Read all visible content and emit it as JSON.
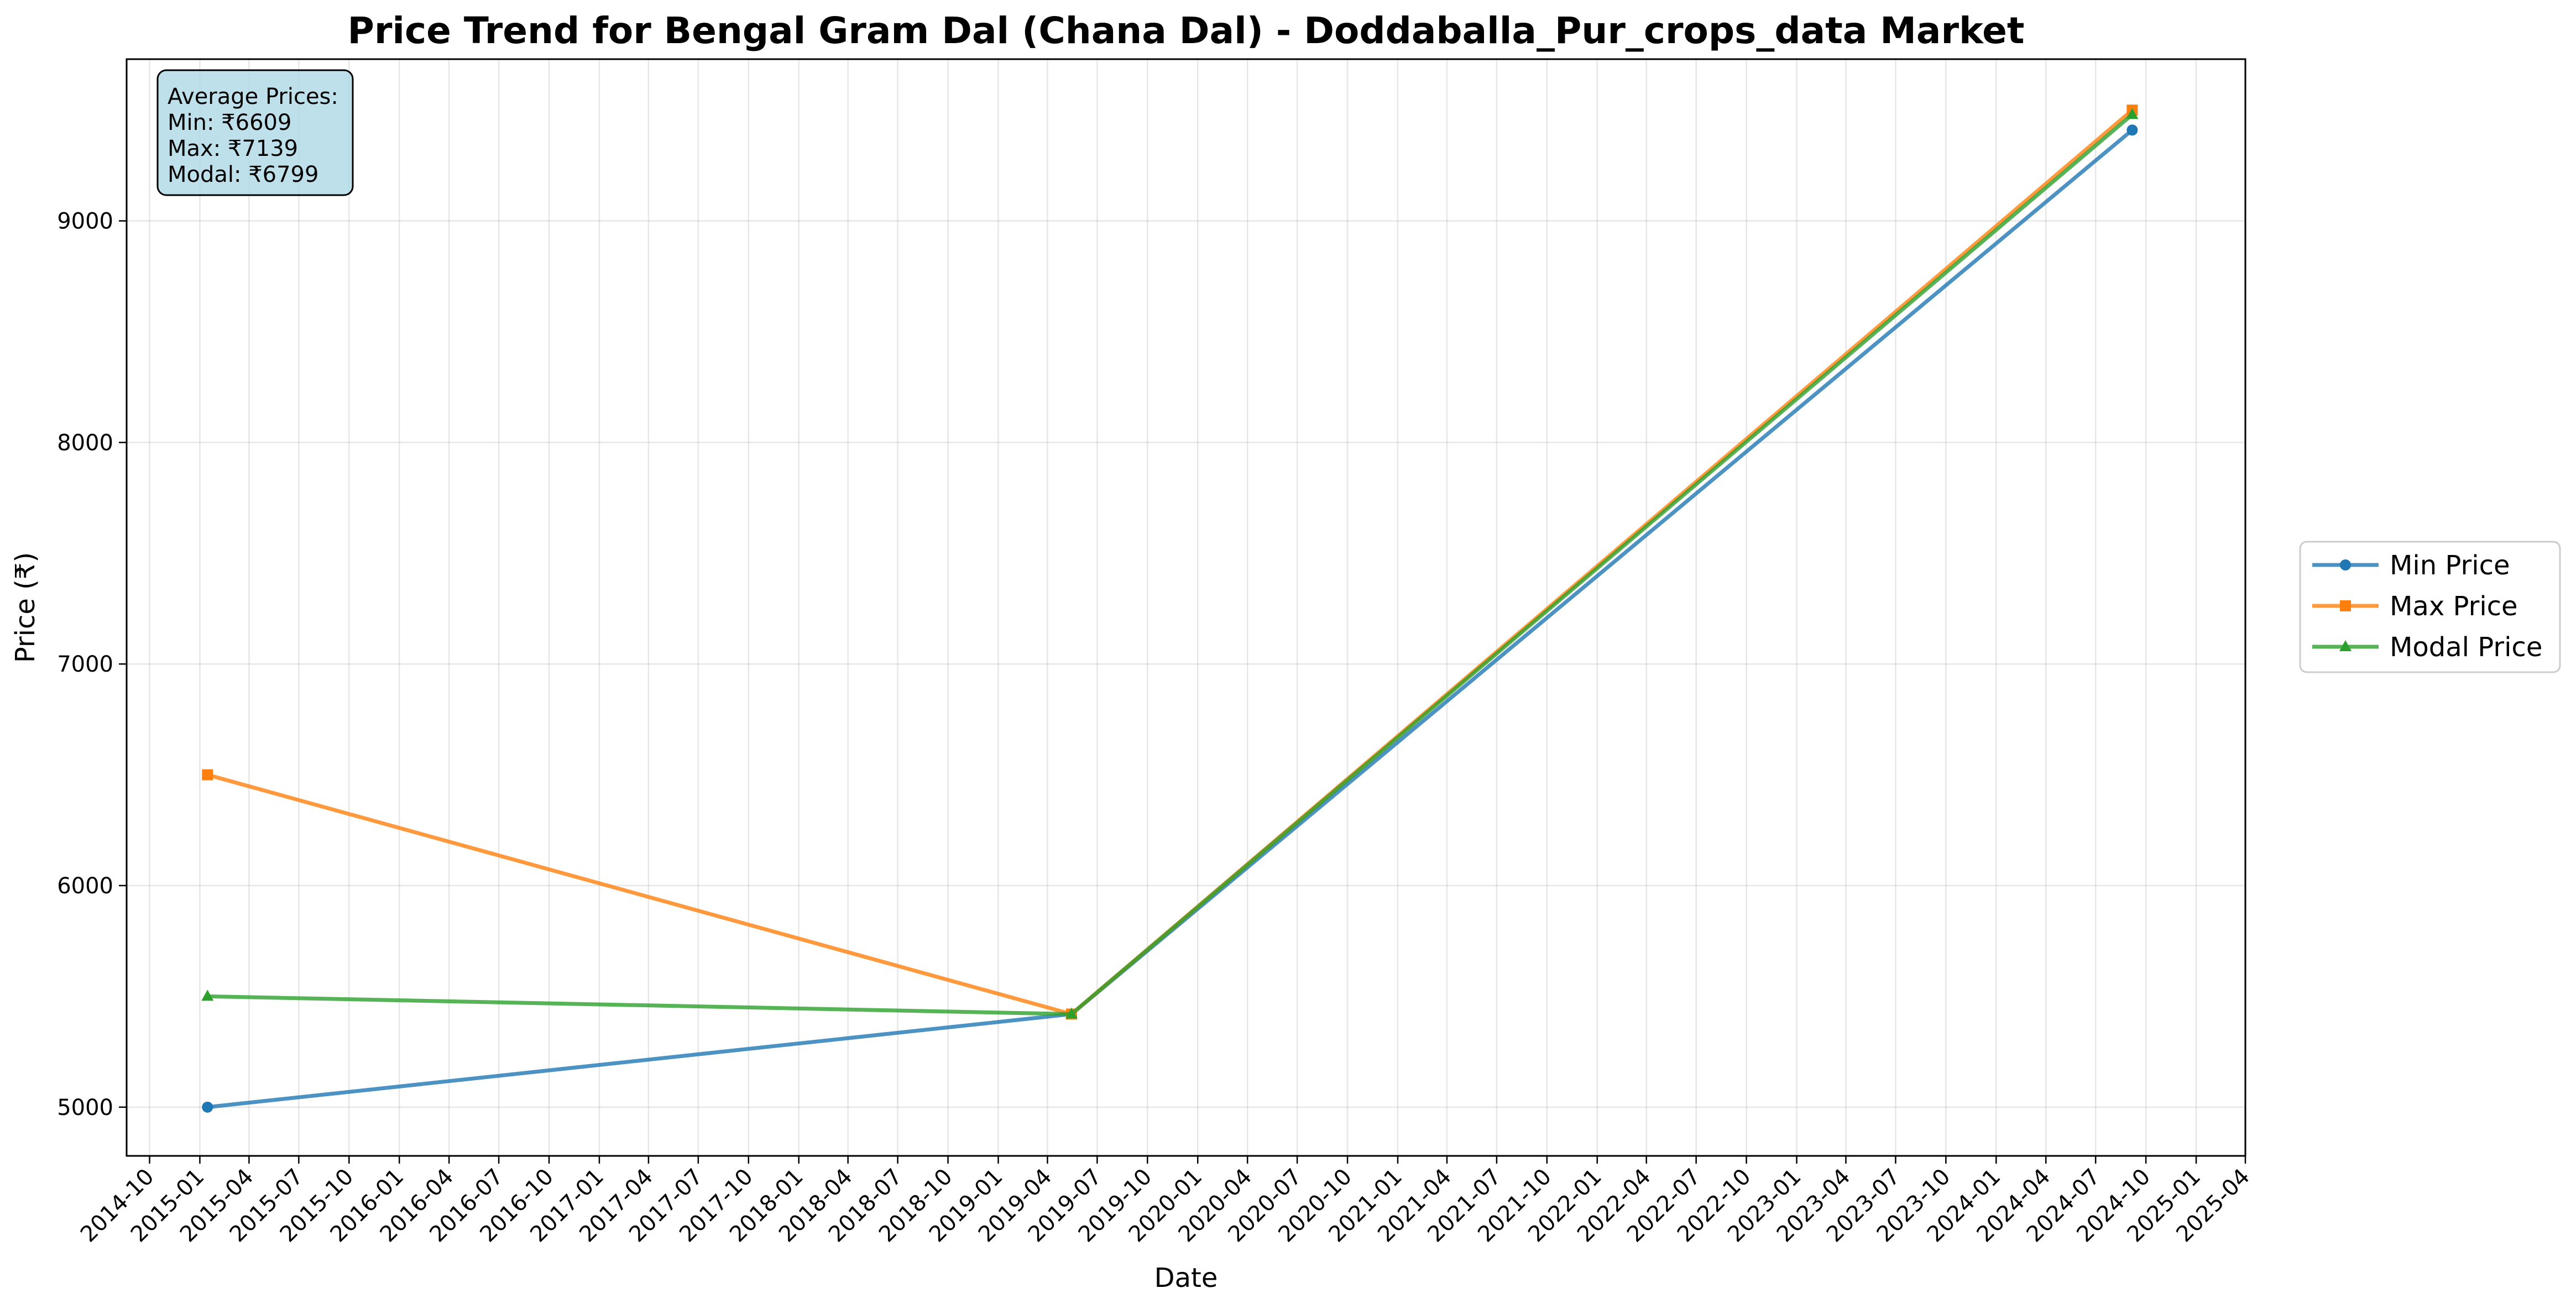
{
  "chart_data": {
    "type": "line",
    "title": "Price Trend for Bengal Gram Dal (Chana Dal) - Doddaballa_Pur_crops_data Market",
    "xlabel": "Date",
    "ylabel": "Price (₹)",
    "x": [
      "2015-01-15",
      "2019-05-15",
      "2024-09-06"
    ],
    "series": [
      {
        "name": "Min Price",
        "color": "#1f77b4",
        "marker": "circle",
        "values": [
          5000,
          5420,
          9410
        ]
      },
      {
        "name": "Max Price",
        "color": "#ff7f0e",
        "marker": "square",
        "values": [
          6500,
          5420,
          9500
        ]
      },
      {
        "name": "Modal Price",
        "color": "#2ca02c",
        "marker": "triangle",
        "values": [
          5500,
          5420,
          9480
        ]
      }
    ],
    "xlim": [
      "2014-08-20",
      "2025-04-01"
    ],
    "ylim": [
      4780,
      9730
    ],
    "x_ticks": [
      "2014-10",
      "2015-01",
      "2015-04",
      "2015-07",
      "2015-10",
      "2016-01",
      "2016-04",
      "2016-07",
      "2016-10",
      "2017-01",
      "2017-04",
      "2017-07",
      "2017-10",
      "2018-01",
      "2018-04",
      "2018-07",
      "2018-10",
      "2019-01",
      "2019-04",
      "2019-07",
      "2019-10",
      "2020-01",
      "2020-04",
      "2020-07",
      "2020-10",
      "2021-01",
      "2021-04",
      "2021-07",
      "2021-10",
      "2022-01",
      "2022-04",
      "2022-07",
      "2022-10",
      "2023-01",
      "2023-04",
      "2023-07",
      "2023-10",
      "2024-01",
      "2024-04",
      "2024-07",
      "2024-10",
      "2025-01",
      "2025-04"
    ],
    "y_ticks": [
      5000,
      6000,
      7000,
      8000,
      9000
    ],
    "grid": true,
    "legend_position": "right, outside plot",
    "stats_box": {
      "lines": [
        "Average Prices:",
        "Min: ₹6609",
        "Max: ₹7139",
        "Modal: ₹6799"
      ],
      "background": "#add8e6"
    }
  }
}
